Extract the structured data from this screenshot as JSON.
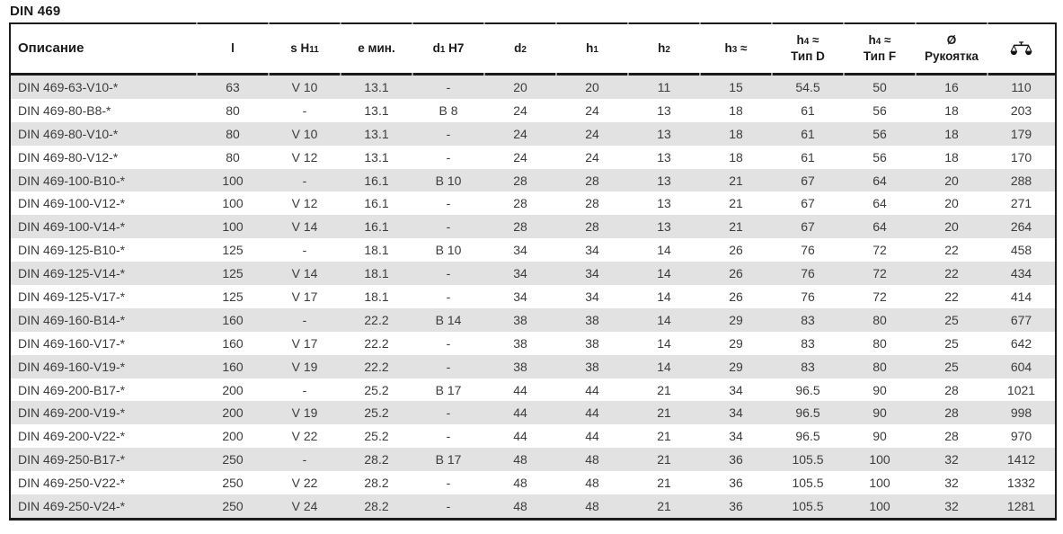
{
  "page_title": "DIN 469",
  "colors": {
    "row_stripe": "#e2e2e2",
    "border": "#1c1c1c",
    "body_text": "#3c3c3c",
    "header_text": "#1a1a1a",
    "border_tick": "#9c9c9c"
  },
  "table": {
    "columns": [
      {
        "id": "description",
        "align": "left",
        "parts": [
          {
            "style": "base",
            "text": "Описание"
          }
        ]
      },
      {
        "id": "l",
        "parts": [
          {
            "style": "base",
            "text": "l"
          }
        ]
      },
      {
        "id": "s-h11",
        "parts": [
          {
            "style": "base",
            "text": "s H"
          },
          {
            "style": "idx",
            "text": "11"
          }
        ]
      },
      {
        "id": "e-min",
        "parts": [
          {
            "style": "base",
            "text": "e мин."
          }
        ]
      },
      {
        "id": "d1-h7",
        "parts": [
          {
            "style": "base",
            "text": "d"
          },
          {
            "style": "idx",
            "text": "1"
          },
          {
            "style": "base",
            "text": " H7"
          }
        ]
      },
      {
        "id": "d2",
        "parts": [
          {
            "style": "base",
            "text": "d"
          },
          {
            "style": "idx",
            "text": "2"
          }
        ]
      },
      {
        "id": "h1",
        "parts": [
          {
            "style": "base",
            "text": "h"
          },
          {
            "style": "idx",
            "text": "1"
          }
        ]
      },
      {
        "id": "h2",
        "parts": [
          {
            "style": "base",
            "text": "h"
          },
          {
            "style": "idx",
            "text": "2"
          }
        ]
      },
      {
        "id": "h3",
        "parts": [
          {
            "style": "base",
            "text": "h"
          },
          {
            "style": "idx",
            "text": "3"
          },
          {
            "style": "base",
            "text": " ≈"
          }
        ]
      },
      {
        "id": "h4-typ-d",
        "parts": [
          {
            "style": "base",
            "text": "h"
          },
          {
            "style": "idx",
            "text": "4"
          },
          {
            "style": "base",
            "text": " ≈"
          }
        ],
        "line2": "Тип D"
      },
      {
        "id": "h4-typ-f",
        "parts": [
          {
            "style": "base",
            "text": "h"
          },
          {
            "style": "idx",
            "text": "4"
          },
          {
            "style": "base",
            "text": " ≈"
          }
        ],
        "line2": "Тип F"
      },
      {
        "id": "handle-diameter",
        "parts": [
          {
            "style": "base",
            "text": "Ø"
          }
        ],
        "line2": "Рукоятка"
      },
      {
        "id": "weight",
        "icon": "scales-icon"
      }
    ],
    "rows": [
      [
        "DIN 469-63-V10-*",
        "63",
        "V 10",
        "13.1",
        "-",
        "20",
        "20",
        "11",
        "15",
        "54.5",
        "50",
        "16",
        "110"
      ],
      [
        "DIN 469-80-B8-*",
        "80",
        "-",
        "13.1",
        "B 8",
        "24",
        "24",
        "13",
        "18",
        "61",
        "56",
        "18",
        "203"
      ],
      [
        "DIN 469-80-V10-*",
        "80",
        "V 10",
        "13.1",
        "-",
        "24",
        "24",
        "13",
        "18",
        "61",
        "56",
        "18",
        "179"
      ],
      [
        "DIN 469-80-V12-*",
        "80",
        "V 12",
        "13.1",
        "-",
        "24",
        "24",
        "13",
        "18",
        "61",
        "56",
        "18",
        "170"
      ],
      [
        "DIN 469-100-B10-*",
        "100",
        "-",
        "16.1",
        "B 10",
        "28",
        "28",
        "13",
        "21",
        "67",
        "64",
        "20",
        "288"
      ],
      [
        "DIN 469-100-V12-*",
        "100",
        "V 12",
        "16.1",
        "-",
        "28",
        "28",
        "13",
        "21",
        "67",
        "64",
        "20",
        "271"
      ],
      [
        "DIN 469-100-V14-*",
        "100",
        "V 14",
        "16.1",
        "-",
        "28",
        "28",
        "13",
        "21",
        "67",
        "64",
        "20",
        "264"
      ],
      [
        "DIN 469-125-B10-*",
        "125",
        "-",
        "18.1",
        "B 10",
        "34",
        "34",
        "14",
        "26",
        "76",
        "72",
        "22",
        "458"
      ],
      [
        "DIN 469-125-V14-*",
        "125",
        "V 14",
        "18.1",
        "-",
        "34",
        "34",
        "14",
        "26",
        "76",
        "72",
        "22",
        "434"
      ],
      [
        "DIN 469-125-V17-*",
        "125",
        "V 17",
        "18.1",
        "-",
        "34",
        "34",
        "14",
        "26",
        "76",
        "72",
        "22",
        "414"
      ],
      [
        "DIN 469-160-B14-*",
        "160",
        "-",
        "22.2",
        "B 14",
        "38",
        "38",
        "14",
        "29",
        "83",
        "80",
        "25",
        "677"
      ],
      [
        "DIN 469-160-V17-*",
        "160",
        "V 17",
        "22.2",
        "-",
        "38",
        "38",
        "14",
        "29",
        "83",
        "80",
        "25",
        "642"
      ],
      [
        "DIN 469-160-V19-*",
        "160",
        "V 19",
        "22.2",
        "-",
        "38",
        "38",
        "14",
        "29",
        "83",
        "80",
        "25",
        "604"
      ],
      [
        "DIN 469-200-B17-*",
        "200",
        "-",
        "25.2",
        "B 17",
        "44",
        "44",
        "21",
        "34",
        "96.5",
        "90",
        "28",
        "1021"
      ],
      [
        "DIN 469-200-V19-*",
        "200",
        "V 19",
        "25.2",
        "-",
        "44",
        "44",
        "21",
        "34",
        "96.5",
        "90",
        "28",
        "998"
      ],
      [
        "DIN 469-200-V22-*",
        "200",
        "V 22",
        "25.2",
        "-",
        "44",
        "44",
        "21",
        "34",
        "96.5",
        "90",
        "28",
        "970"
      ],
      [
        "DIN 469-250-B17-*",
        "250",
        "-",
        "28.2",
        "B 17",
        "48",
        "48",
        "21",
        "36",
        "105.5",
        "100",
        "32",
        "1412"
      ],
      [
        "DIN 469-250-V22-*",
        "250",
        "V 22",
        "28.2",
        "-",
        "48",
        "48",
        "21",
        "36",
        "105.5",
        "100",
        "32",
        "1332"
      ],
      [
        "DIN 469-250-V24-*",
        "250",
        "V 24",
        "28.2",
        "-",
        "48",
        "48",
        "21",
        "36",
        "105.5",
        "100",
        "32",
        "1281"
      ]
    ]
  }
}
